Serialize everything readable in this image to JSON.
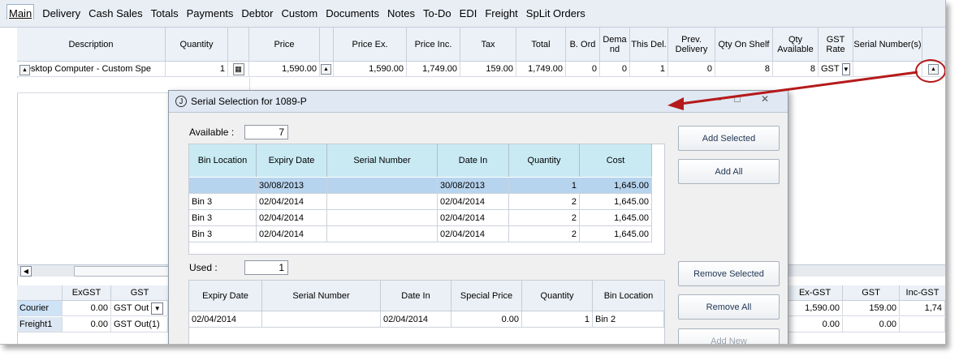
{
  "tabs": [
    {
      "label": "Main",
      "active": true
    },
    {
      "label": "Delivery"
    },
    {
      "label": "Cash Sales"
    },
    {
      "label": "Totals"
    },
    {
      "label": "Payments"
    },
    {
      "label": "Debtor"
    },
    {
      "label": "Custom"
    },
    {
      "label": "Documents"
    },
    {
      "label": "Notes"
    },
    {
      "label": "To-Do"
    },
    {
      "label": "EDI"
    },
    {
      "label": "Freight"
    },
    {
      "label": "SpLit Orders"
    }
  ],
  "main_grid": {
    "headers": {
      "description": "Description",
      "quantity": "Quantity",
      "price": "Price",
      "price_ex": "Price Ex.",
      "price_inc": "Price Inc.",
      "tax": "Tax",
      "total": "Total",
      "b_ord": "B. Ord",
      "demand": "Dema nd",
      "this_del": "This Del.",
      "prev_delivery": "Prev. Delivery",
      "qty_on_shelf": "Qty On Shelf",
      "qty_available": "Qty Available",
      "gst_rate": "GST Rate",
      "serial_numbers": "Serial Number(s)"
    },
    "row": {
      "description": "Desktop Computer  - Custom Spe",
      "quantity": "1",
      "price": "1,590.00",
      "price_ex": "1,590.00",
      "price_inc": "1,749.00",
      "tax": "159.00",
      "total": "1,749.00",
      "b_ord": "0",
      "demand": "0",
      "this_del": "1",
      "prev_delivery": "0",
      "qty_on_shelf": "8",
      "qty_available": "8",
      "gst_rate": "GST"
    }
  },
  "bottom_grid": {
    "headers": {
      "exgst": "ExGST",
      "gst": "GST",
      "right_exgst": "Ex-GST",
      "right_gst": "GST",
      "right_incgst": "Inc-GST"
    },
    "rows": [
      {
        "label": "Courier",
        "exgst": "0.00",
        "gst": "GST Out",
        "r_exgst": "1,590.00",
        "r_gst": "159.00",
        "r_inc": "1,74"
      },
      {
        "label": "Freight1",
        "exgst": "0.00",
        "gst": "GST Out(1)",
        "r_exgst": "0.00",
        "r_gst": "0.00",
        "r_inc": ""
      }
    ]
  },
  "dialog": {
    "title": "Serial Selection for 1089-P",
    "available_label": "Available :",
    "available_value": "7",
    "used_label": "Used :",
    "used_value": "1",
    "available_headers": {
      "bin": "Bin Location",
      "expiry": "Expiry Date",
      "serial": "Serial Number",
      "date_in": "Date In",
      "quantity": "Quantity",
      "cost": "Cost"
    },
    "available_rows": [
      {
        "bin": "",
        "expiry": "30/08/2013",
        "serial": "",
        "date_in": "30/08/2013",
        "quantity": "1",
        "cost": "1,645.00"
      },
      {
        "bin": "Bin 3",
        "expiry": "02/04/2014",
        "serial": "",
        "date_in": "02/04/2014",
        "quantity": "2",
        "cost": "1,645.00"
      },
      {
        "bin": "Bin 3",
        "expiry": "02/04/2014",
        "serial": "",
        "date_in": "02/04/2014",
        "quantity": "2",
        "cost": "1,645.00"
      },
      {
        "bin": "Bin 3",
        "expiry": "02/04/2014",
        "serial": "",
        "date_in": "02/04/2014",
        "quantity": "2",
        "cost": "1,645.00"
      }
    ],
    "used_headers": {
      "expiry": "Expiry Date",
      "serial": "Serial Number",
      "date_in": "Date In",
      "special_price": "Special Price",
      "quantity": "Quantity",
      "bin": "Bin Location"
    },
    "used_rows": [
      {
        "expiry": "02/04/2014",
        "serial": "",
        "date_in": "02/04/2014",
        "special_price": "0.00",
        "quantity": "1",
        "bin": "Bin 2"
      }
    ],
    "buttons": {
      "add_selected": "Add Selected",
      "add_all": "Add All",
      "remove_selected": "Remove Selected",
      "remove_all": "Remove All",
      "add_new": "Add New"
    }
  },
  "colors": {
    "selected_row": "#b7d4ee",
    "header_cyan": "#c9eaf3",
    "annotation_red": "#b51a1a"
  }
}
